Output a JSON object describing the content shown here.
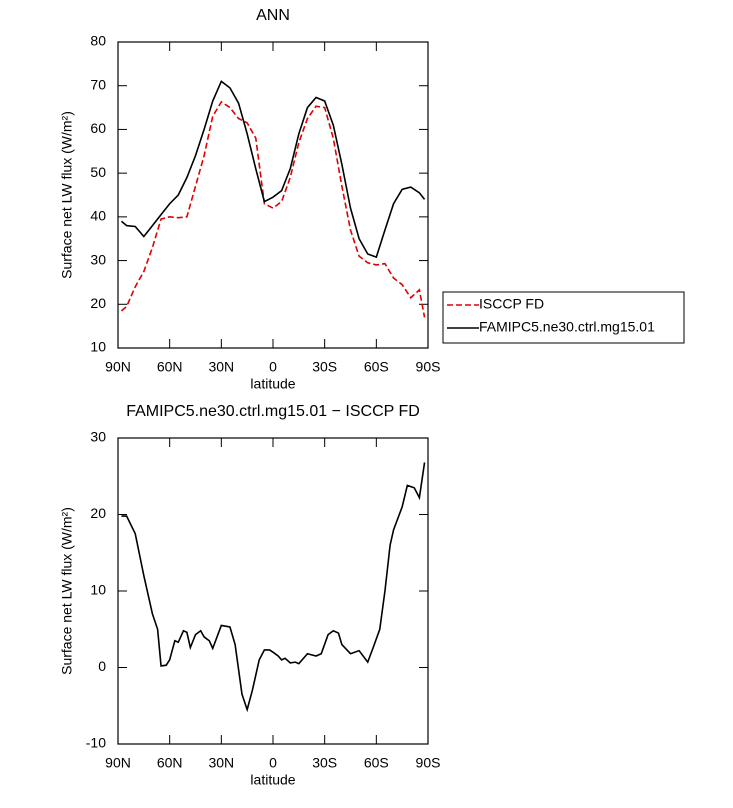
{
  "chart_data": [
    {
      "type": "line",
      "title": "ANN",
      "x_label": "latitude",
      "y_label": "Surface net LW flux (W/m²)",
      "x": [
        88,
        85,
        80,
        75,
        70,
        65,
        60,
        55,
        50,
        45,
        40,
        35,
        30,
        25,
        20,
        15,
        10,
        5,
        0,
        -5,
        -10,
        -15,
        -20,
        -25,
        -30,
        -35,
        -40,
        -45,
        -50,
        -55,
        -60,
        -65,
        -70,
        -75,
        -80,
        -85,
        -88
      ],
      "series": [
        {
          "name": "ISCCP FD",
          "color": "#e00000",
          "dashed": true,
          "values": [
            18.5,
            19.5,
            24,
            27.5,
            33,
            39.5,
            40,
            39.8,
            40,
            47,
            54,
            63,
            66.3,
            65,
            62.5,
            61.5,
            58,
            43,
            42,
            43.5,
            49,
            57,
            62.5,
            65.3,
            65,
            58,
            47,
            37,
            31,
            29.5,
            29,
            29.3,
            26,
            24.5,
            21.5,
            23.3,
            17
          ]
        },
        {
          "name": "FAMIPC5.ne30.ctrl.mg15.01",
          "color": "#000000",
          "dashed": false,
          "values": [
            39,
            38,
            37.8,
            35.5,
            38,
            40.5,
            43,
            45,
            49,
            54,
            60,
            66.5,
            71,
            69.5,
            66,
            59,
            51,
            43.5,
            44.5,
            46,
            51,
            59,
            65,
            67.3,
            66.5,
            61,
            52,
            42,
            35,
            31.5,
            30.8,
            37,
            43,
            46.3,
            46.8,
            45.5,
            44
          ]
        }
      ],
      "xlim": [
        90,
        -90
      ],
      "xticks": [
        {
          "value": 90,
          "label": "90N"
        },
        {
          "value": 60,
          "label": "60N"
        },
        {
          "value": 30,
          "label": "30N"
        },
        0,
        {
          "value": -30,
          "label": "30S"
        },
        {
          "value": -60,
          "label": "60S"
        },
        {
          "value": -90,
          "label": "90S"
        }
      ],
      "ylim": [
        10,
        80
      ],
      "yticks": [
        10,
        20,
        30,
        40,
        50,
        60,
        70,
        80
      ],
      "legend": "right"
    },
    {
      "type": "line",
      "title": "FAMIPC5.ne30.ctrl.mg15.01 − ISCCP FD",
      "x_label": "latitude",
      "y_label": "Surface net LW flux (W/m²)",
      "x": [
        88,
        85,
        80,
        75,
        70,
        67,
        65,
        62,
        60,
        57,
        55,
        52,
        50,
        48,
        45,
        42,
        40,
        37,
        35,
        30,
        25,
        22,
        18,
        15,
        12,
        8,
        5,
        2,
        0,
        -3,
        -5,
        -7,
        -10,
        -13,
        -15,
        -20,
        -25,
        -28,
        -32,
        -35,
        -38,
        -40,
        -45,
        -50,
        -55,
        -58,
        -62,
        -65,
        -68,
        -70,
        -75,
        -78,
        -82,
        -85,
        -88
      ],
      "series": [
        {
          "color": "#000000",
          "dashed": false,
          "values": [
            19.8,
            19.8,
            17.5,
            12,
            7,
            5,
            0.2,
            0.3,
            1,
            3.5,
            3.3,
            4.8,
            4.6,
            2.6,
            4.3,
            4.8,
            4,
            3.5,
            2.5,
            5.5,
            5.3,
            3,
            -3.5,
            -5.5,
            -3,
            1,
            2.3,
            2.3,
            2,
            1.5,
            1,
            1.2,
            0.6,
            0.7,
            0.5,
            1.8,
            1.5,
            1.8,
            4.3,
            4.8,
            4.5,
            3,
            1.8,
            2.2,
            0.7,
            2.5,
            5,
            10,
            16,
            18,
            21,
            23.8,
            23.5,
            22.2,
            26.8
          ]
        }
      ],
      "xlim": [
        90,
        -90
      ],
      "xticks": [
        {
          "value": 90,
          "label": "90N"
        },
        {
          "value": 60,
          "label": "60N"
        },
        {
          "value": 30,
          "label": "30N"
        },
        0,
        {
          "value": -30,
          "label": "30S"
        },
        {
          "value": -60,
          "label": "60S"
        },
        {
          "value": -90,
          "label": "90S"
        }
      ],
      "ylim": [
        -10,
        30
      ],
      "yticks": [
        -10,
        0,
        10,
        20,
        30
      ]
    }
  ]
}
